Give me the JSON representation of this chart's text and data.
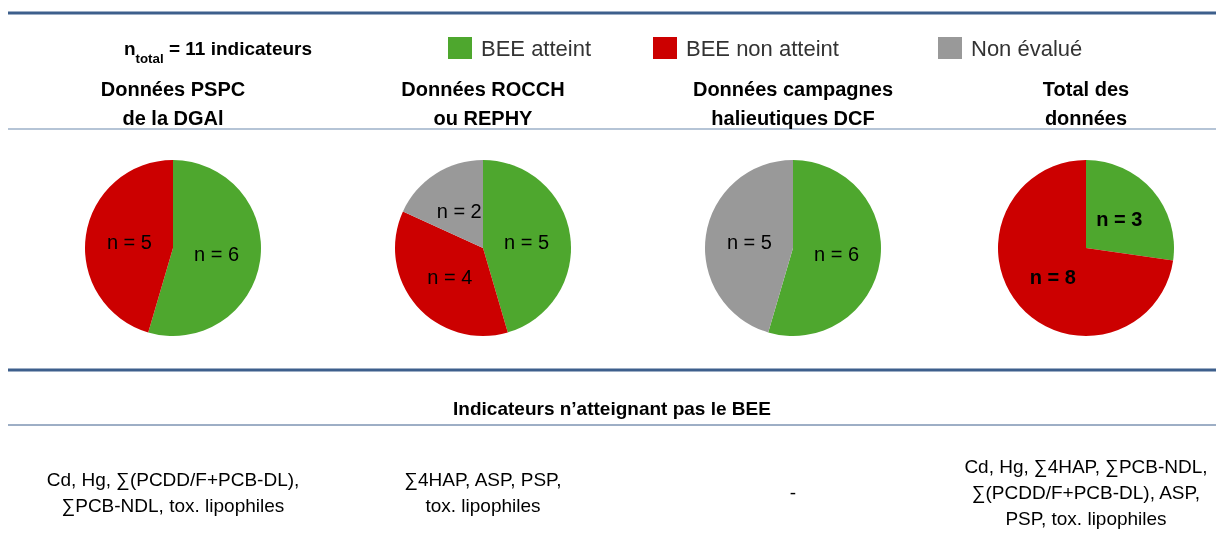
{
  "chart_data": [
    {
      "type": "pie",
      "title": "Données PSPC\nde la DGAl",
      "categories": [
        "BEE atteint",
        "BEE non atteint",
        "Non évalué"
      ],
      "values": [
        6,
        5,
        0
      ],
      "colors": [
        "#4ea72e",
        "#cc0000",
        "#999999"
      ],
      "value_labels": [
        "n = 6",
        "n = 5",
        null
      ],
      "legend": "top",
      "annotations": [
        "n$_{total}$ = 11 indicateurs"
      ]
    },
    {
      "type": "pie",
      "title": "Données ROCCH\nou REPHY",
      "categories": [
        null,
        null,
        null
      ],
      "values": [
        5,
        4,
        2
      ],
      "colors": [
        "#4ea72e",
        "#cc0000",
        "#999999"
      ],
      "value_labels": [
        "n = 5",
        "n = 4",
        "n = 2"
      ]
    },
    {
      "type": "pie",
      "title": "Données campagnes\nhalieutiques DCF",
      "categories": [
        null,
        null
      ],
      "values": [
        6,
        5
      ],
      "colors": [
        "#4ea72e",
        "#999999"
      ],
      "value_labels": [
        "n = 6",
        "n = 5"
      ]
    },
    {
      "type": "pie",
      "title": "Total des\ndonnées",
      "categories": [
        null,
        null
      ],
      "values": [
        3,
        8
      ],
      "colors": [
        "#4ea72e",
        "#cc0000"
      ],
      "value_labels": [
        "n = 3",
        "n = 8"
      ]
    },
    {
      "type": "other",
      "title": "Indicateurs n’atteignant pas le BEE",
      "annotations": [
        "Cd, Hg, ∑(PCDD/F+PCB-DL),\n∑PCB-NDL, tox. lipophiles",
        "∑4HAP, ASP, PSP,\ntox. lipophiles",
        "-",
        "Cd, Hg, ∑4HAP, ∑PCB-NDL,\n∑(PCDD/F+PCB-DL), ASP,\nPSP, tox. lipophiles"
      ]
    }
  ]
}
